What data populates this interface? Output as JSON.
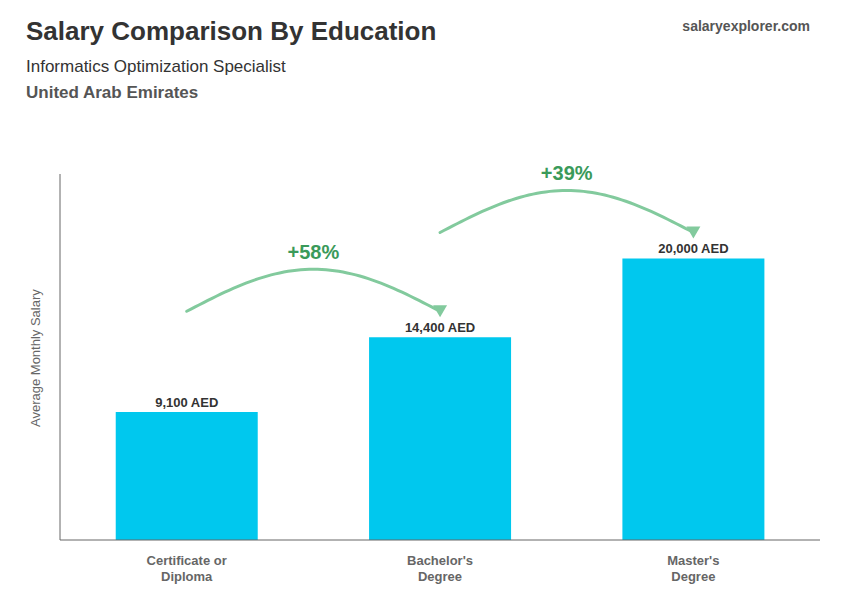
{
  "chart_data": {
    "type": "bar",
    "title": "Salary Comparison By Education",
    "subtitle": "Informatics Optimization Specialist",
    "annotations": [
      {
        "text": "United Arab Emirates"
      },
      {
        "text": "salaryexplorer.com"
      },
      {
        "text": "+58%",
        "between": [
          0,
          1
        ]
      },
      {
        "text": "+39%",
        "between": [
          1,
          2
        ]
      }
    ],
    "ylabel": "Average Monthly Salary",
    "categories": [
      "Certificate or\nDiploma",
      "Bachelor's\nDegree",
      "Master's\nDegree"
    ],
    "values": [
      9100,
      14400,
      20000
    ],
    "value_labels": [
      "9,100 AED",
      "14,400 AED",
      "20,000 AED"
    ],
    "color": "#00c8ee",
    "ylim": [
      0,
      26000
    ],
    "data_labels": true,
    "tick_labels": "x",
    "grid": false
  }
}
